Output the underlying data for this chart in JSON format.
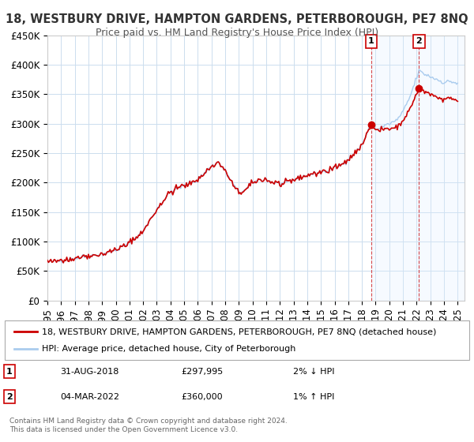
{
  "title": "18, WESTBURY DRIVE, HAMPTON GARDENS, PETERBOROUGH, PE7 8NQ",
  "subtitle": "Price paid vs. HM Land Registry's House Price Index (HPI)",
  "ylabel": "",
  "xlabel": "",
  "ylim": [
    0,
    450000
  ],
  "yticks": [
    0,
    50000,
    100000,
    150000,
    200000,
    250000,
    300000,
    350000,
    400000,
    450000
  ],
  "ytick_labels": [
    "£0",
    "£50K",
    "£100K",
    "£150K",
    "£200K",
    "£250K",
    "£300K",
    "£350K",
    "£400K",
    "£450K"
  ],
  "xlim_start": 1995.0,
  "xlim_end": 2025.5,
  "background_color": "#ffffff",
  "plot_bg_color": "#ffffff",
  "grid_color": "#ccddee",
  "hpi_line_color": "#aaccee",
  "price_line_color": "#cc0000",
  "shade_color": "#ddeeff",
  "point1_x": 2018.667,
  "point1_y": 297995,
  "point1_label": "1",
  "point2_x": 2022.17,
  "point2_y": 360000,
  "point2_label": "2",
  "legend_entry1": "18, WESTBURY DRIVE, HAMPTON GARDENS, PETERBOROUGH, PE7 8NQ (detached house)",
  "legend_entry2": "HPI: Average price, detached house, City of Peterborough",
  "annotation1_date": "31-AUG-2018",
  "annotation1_price": "£297,995",
  "annotation1_hpi": "2% ↓ HPI",
  "annotation2_date": "04-MAR-2022",
  "annotation2_price": "£360,000",
  "annotation2_hpi": "1% ↑ HPI",
  "footer": "Contains HM Land Registry data © Crown copyright and database right 2024.\nThis data is licensed under the Open Government Licence v3.0.",
  "title_fontsize": 10.5,
  "subtitle_fontsize": 9,
  "tick_fontsize": 8.5,
  "legend_fontsize": 8,
  "annotation_fontsize": 8
}
